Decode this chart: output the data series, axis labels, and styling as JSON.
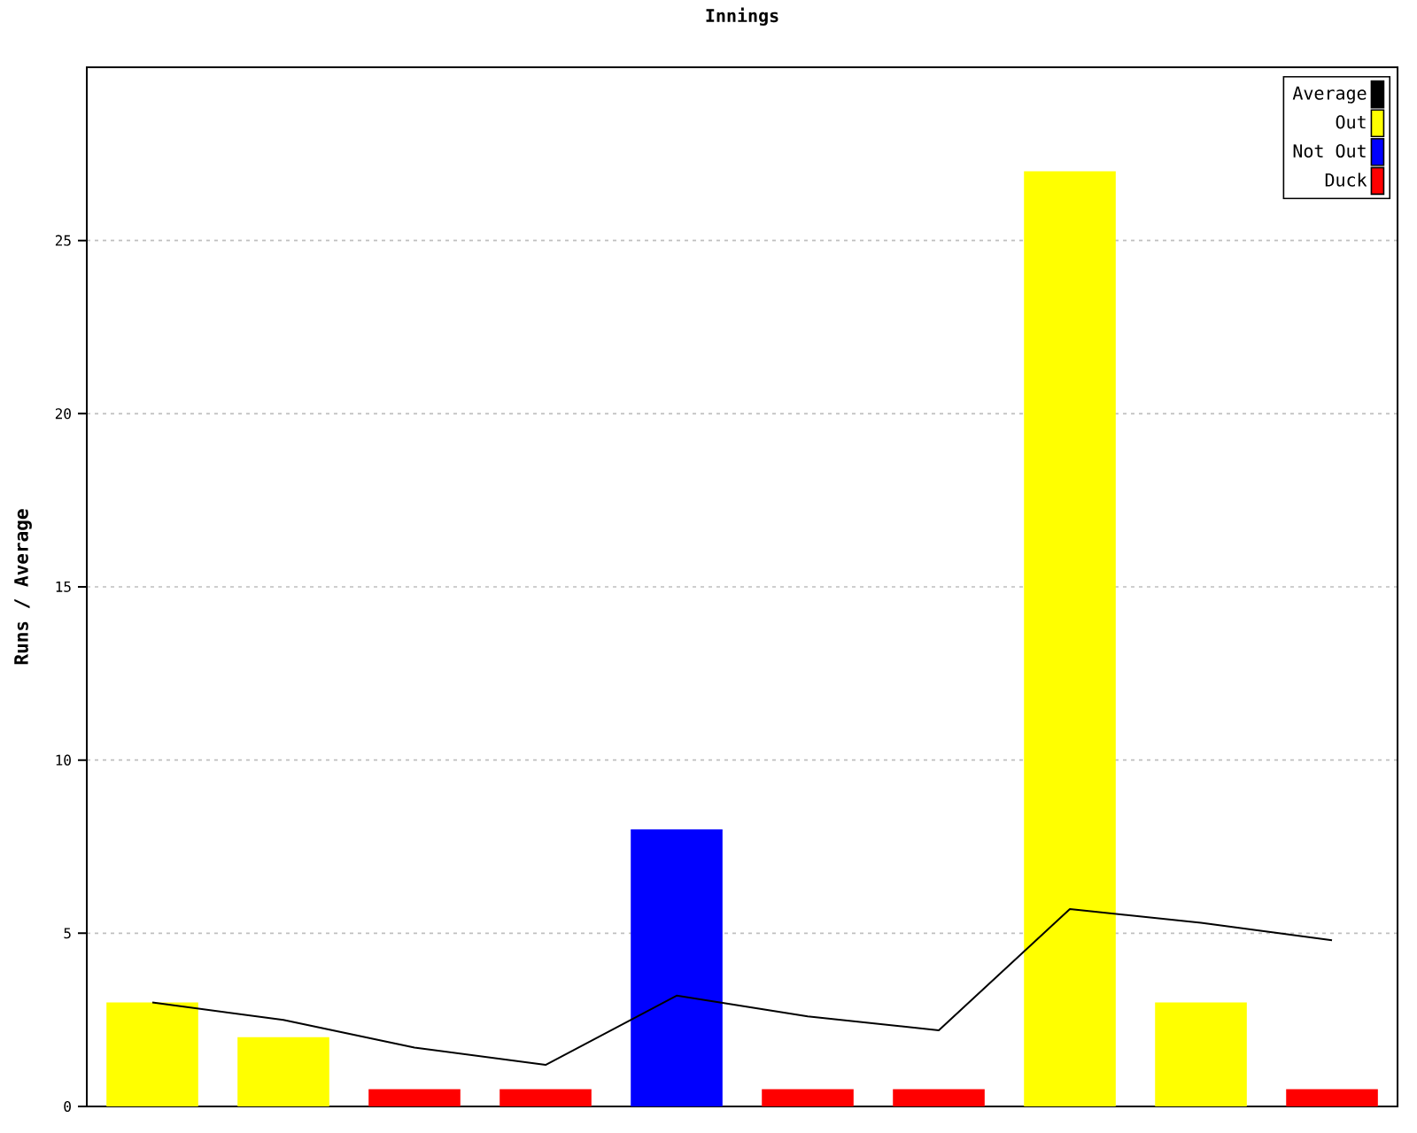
{
  "chart_data": {
    "type": "bar",
    "title": "Innings",
    "ylabel": "Runs / Average",
    "categories": [
      null,
      null,
      null,
      null,
      null,
      null,
      null,
      null,
      null,
      null
    ],
    "series": [
      {
        "name": "Average",
        "type": "line",
        "color": "#000000",
        "values": [
          3,
          2.5,
          1.7,
          1.2,
          3.2,
          2.6,
          2.2,
          5.7,
          5.3,
          4.8
        ]
      },
      {
        "name": "Out",
        "color": "#ffff00",
        "values": [
          3,
          2,
          null,
          null,
          null,
          null,
          null,
          27,
          3,
          null
        ]
      },
      {
        "name": "Not Out",
        "color": "#0000ff",
        "values": [
          null,
          null,
          null,
          null,
          8,
          null,
          null,
          null,
          null,
          null
        ]
      },
      {
        "name": "Duck",
        "color": "#ff0000",
        "values": [
          null,
          null,
          0.5,
          0.5,
          null,
          0.5,
          0.5,
          null,
          null,
          0.5
        ]
      }
    ],
    "ylim": [
      0,
      30
    ],
    "yticks": [
      0,
      5,
      10,
      15,
      20,
      25
    ],
    "grid": "y",
    "legend": "top right",
    "tick_labels": "y"
  }
}
